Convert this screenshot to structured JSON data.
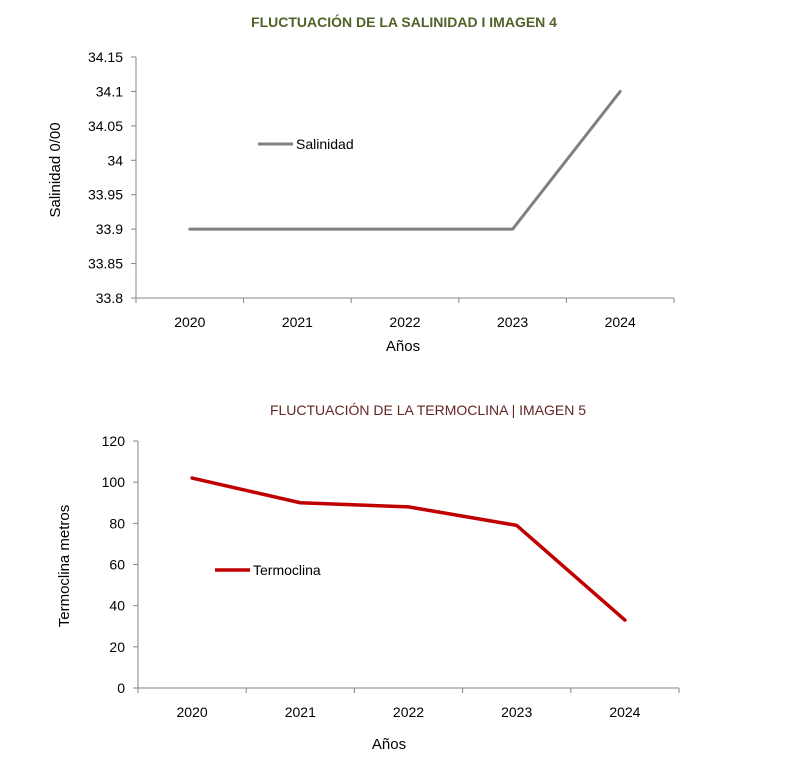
{
  "chart_data": [
    {
      "type": "line",
      "title": "FLUCTUACIÓN  DE LA SALINIDAD I IMAGEN 4",
      "title_color": "#4f6228",
      "xlabel": "Años",
      "ylabel": "Salinidad 0/00",
      "categories": [
        "2020",
        "2021",
        "2022",
        "2023",
        "2024"
      ],
      "series": [
        {
          "name": "Salinidad",
          "color": "#808080",
          "values": [
            33.9,
            33.9,
            33.9,
            33.9,
            34.1
          ]
        }
      ],
      "ylim": [
        33.8,
        34.15
      ],
      "yticks": [
        "33.8",
        "33.85",
        "33.9",
        "33.95",
        "34",
        "34.05",
        "34.1",
        "34.15"
      ],
      "grid": false,
      "legend_position": "inside-top-left"
    },
    {
      "type": "line",
      "title": "FLUCTUACIÓN DE LA TERMOCLINA | IMAGEN 5",
      "title_color": "#632523",
      "xlabel": "Años",
      "ylabel": "Termoclina metros",
      "categories": [
        "2020",
        "2021",
        "2022",
        "2023",
        "2024"
      ],
      "series": [
        {
          "name": "Termoclina",
          "color": "#c00000",
          "values": [
            102,
            90,
            88,
            79,
            33
          ]
        }
      ],
      "ylim": [
        0,
        120
      ],
      "yticks": [
        "0",
        "20",
        "40",
        "60",
        "80",
        "100",
        "120"
      ],
      "grid": false,
      "legend_position": "inside-middle-left"
    }
  ]
}
